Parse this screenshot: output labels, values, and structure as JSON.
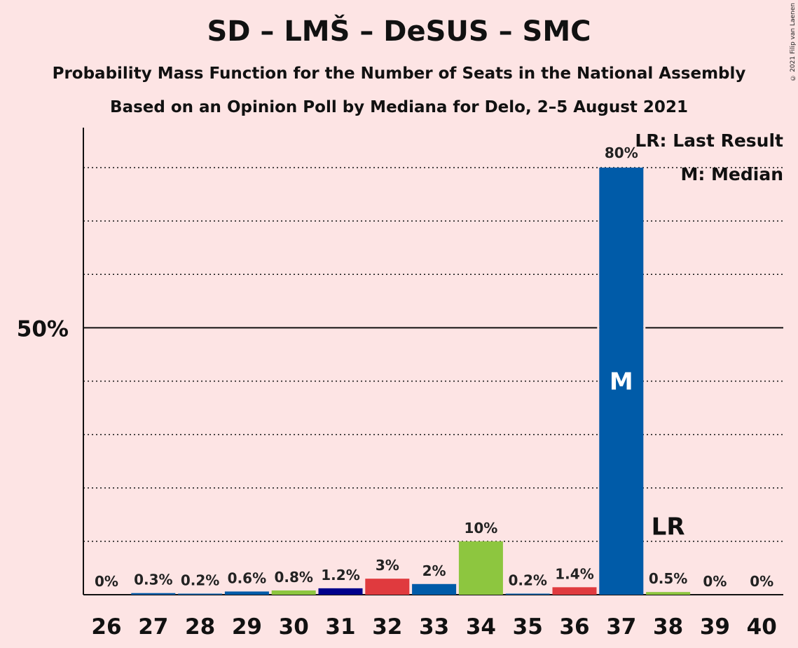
{
  "title": "SD – LMŠ – DeSUS – SMC",
  "subtitle1": "Probability Mass Function for the Number of Seats in the National Assembly",
  "subtitle2": "Based on an Opinion Poll by Mediana for Delo, 2–5 August 2021",
  "copyright": "© 2021 Filip van Laenen",
  "legend": {
    "lr": "LR: Last Result",
    "median": "M: Median"
  },
  "markers": {
    "median": "M",
    "last_result": "LR"
  },
  "chart_data": {
    "type": "bar",
    "categories": [
      "26",
      "27",
      "28",
      "29",
      "30",
      "31",
      "32",
      "33",
      "34",
      "35",
      "36",
      "37",
      "38",
      "39",
      "40"
    ],
    "values": [
      0,
      0.3,
      0.2,
      0.6,
      0.8,
      1.2,
      3,
      2,
      10,
      0.2,
      1.4,
      80,
      0.5,
      0,
      0
    ],
    "labels": [
      "0%",
      "0.3%",
      "0.2%",
      "0.6%",
      "0.8%",
      "1.2%",
      "3%",
      "2%",
      "10%",
      "0.2%",
      "1.4%",
      "80%",
      "0.5%",
      "0%",
      "0%"
    ],
    "colors": [
      "#005ba8",
      "#005ba8",
      "#005ba8",
      "#005ba8",
      "#8dc63f",
      "#00008b",
      "#e03a3e",
      "#005ba8",
      "#8dc63f",
      "#005ba8",
      "#e03a3e",
      "#005ba8",
      "#8dc63f",
      "#005ba8",
      "#005ba8"
    ],
    "ylim": [
      0,
      88
    ],
    "y_tick_label": "50%",
    "y_tick_value": 50,
    "gridlines": [
      10,
      20,
      30,
      40,
      60,
      70,
      80
    ],
    "median_category": "37",
    "last_result_category": "38"
  }
}
